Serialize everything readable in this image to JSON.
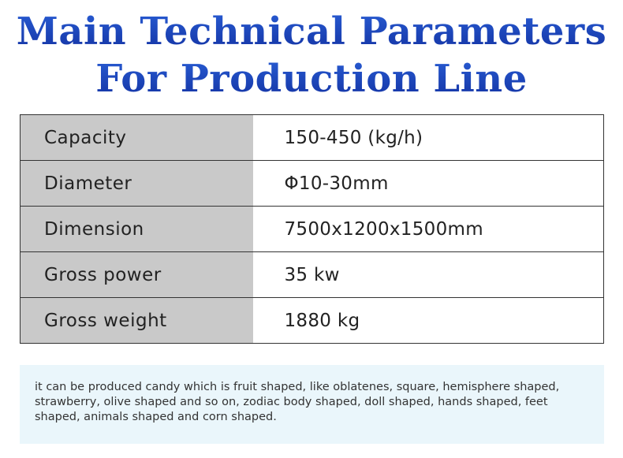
{
  "header": {
    "title_lines": [
      "Main Technical Parameters",
      "For Production Line"
    ]
  },
  "table": {
    "rows": [
      [
        "Capacity",
        "150-450 (kg/h)"
      ],
      [
        "Diameter",
        "Φ10-30mm"
      ],
      [
        "Dimension",
        "7500x1200x1500mm"
      ],
      [
        "Gross power",
        "35 kw"
      ],
      [
        "Gross weight",
        "1880 kg"
      ]
    ]
  },
  "note": {
    "lines": [
      "it can be produced candy which is fruit shaped, like oblatenes, square, hemisphere shaped,",
      "strawberry, olive shaped and so on, zodiac body shaped, doll shaped, hands shaped, feet",
      "shaped, animals shaped and corn shaped."
    ]
  }
}
